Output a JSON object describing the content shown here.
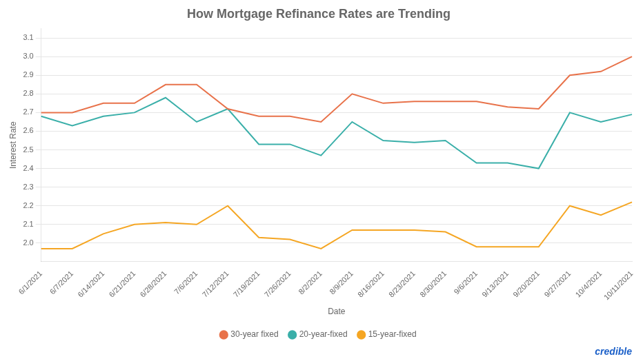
{
  "chart_data": {
    "type": "line",
    "title": "How Mortgage Refinance Rates are Trending",
    "xlabel": "Date",
    "ylabel": "Interest Rate",
    "categories": [
      "6/1/2021",
      "6/7/2021",
      "6/14/2021",
      "6/21/2021",
      "6/28/2021",
      "7/6/2021",
      "7/12/2021",
      "7/19/2021",
      "7/26/2021",
      "8/2/2021",
      "8/9/2021",
      "8/16/2021",
      "8/23/2021",
      "8/30/2021",
      "9/6/2021",
      "9/13/2021",
      "9/20/2021",
      "9/27/2021",
      "10/4/2021",
      "10/11/2021"
    ],
    "series": [
      {
        "name": "30-year fixed",
        "color": "#E8724A",
        "values": [
          2.7,
          2.7,
          2.75,
          2.75,
          2.85,
          2.85,
          2.72,
          2.68,
          2.68,
          2.65,
          2.8,
          2.75,
          2.76,
          2.76,
          2.76,
          2.73,
          2.72,
          2.9,
          2.92,
          3.0
        ]
      },
      {
        "name": "20-year-fixed",
        "color": "#3AAFA9",
        "values": [
          2.68,
          2.63,
          2.68,
          2.7,
          2.78,
          2.65,
          2.72,
          2.53,
          2.53,
          2.47,
          2.65,
          2.55,
          2.54,
          2.55,
          2.43,
          2.43,
          2.4,
          2.7,
          2.65,
          2.69
        ]
      },
      {
        "name": "15-year-fixed",
        "color": "#F5A623",
        "values": [
          1.97,
          1.97,
          2.05,
          2.1,
          2.11,
          2.1,
          2.2,
          2.03,
          2.02,
          1.97,
          2.07,
          2.07,
          2.07,
          2.06,
          1.98,
          1.98,
          1.98,
          2.2,
          2.15,
          2.22
        ]
      }
    ],
    "ylim": [
      1.9,
      3.15
    ],
    "yticks": [
      {
        "value": 2.0,
        "label": "2.0"
      },
      2.1,
      2.2,
      2.3,
      2.4,
      2.5,
      2.6,
      2.7,
      2.8,
      2.9,
      {
        "value": 3.0,
        "label": "3.0"
      },
      3.1
    ],
    "grid": true,
    "legend": "bottom",
    "annotations": [
      {
        "text": "credible",
        "color": "#1a5fc8"
      }
    ]
  }
}
